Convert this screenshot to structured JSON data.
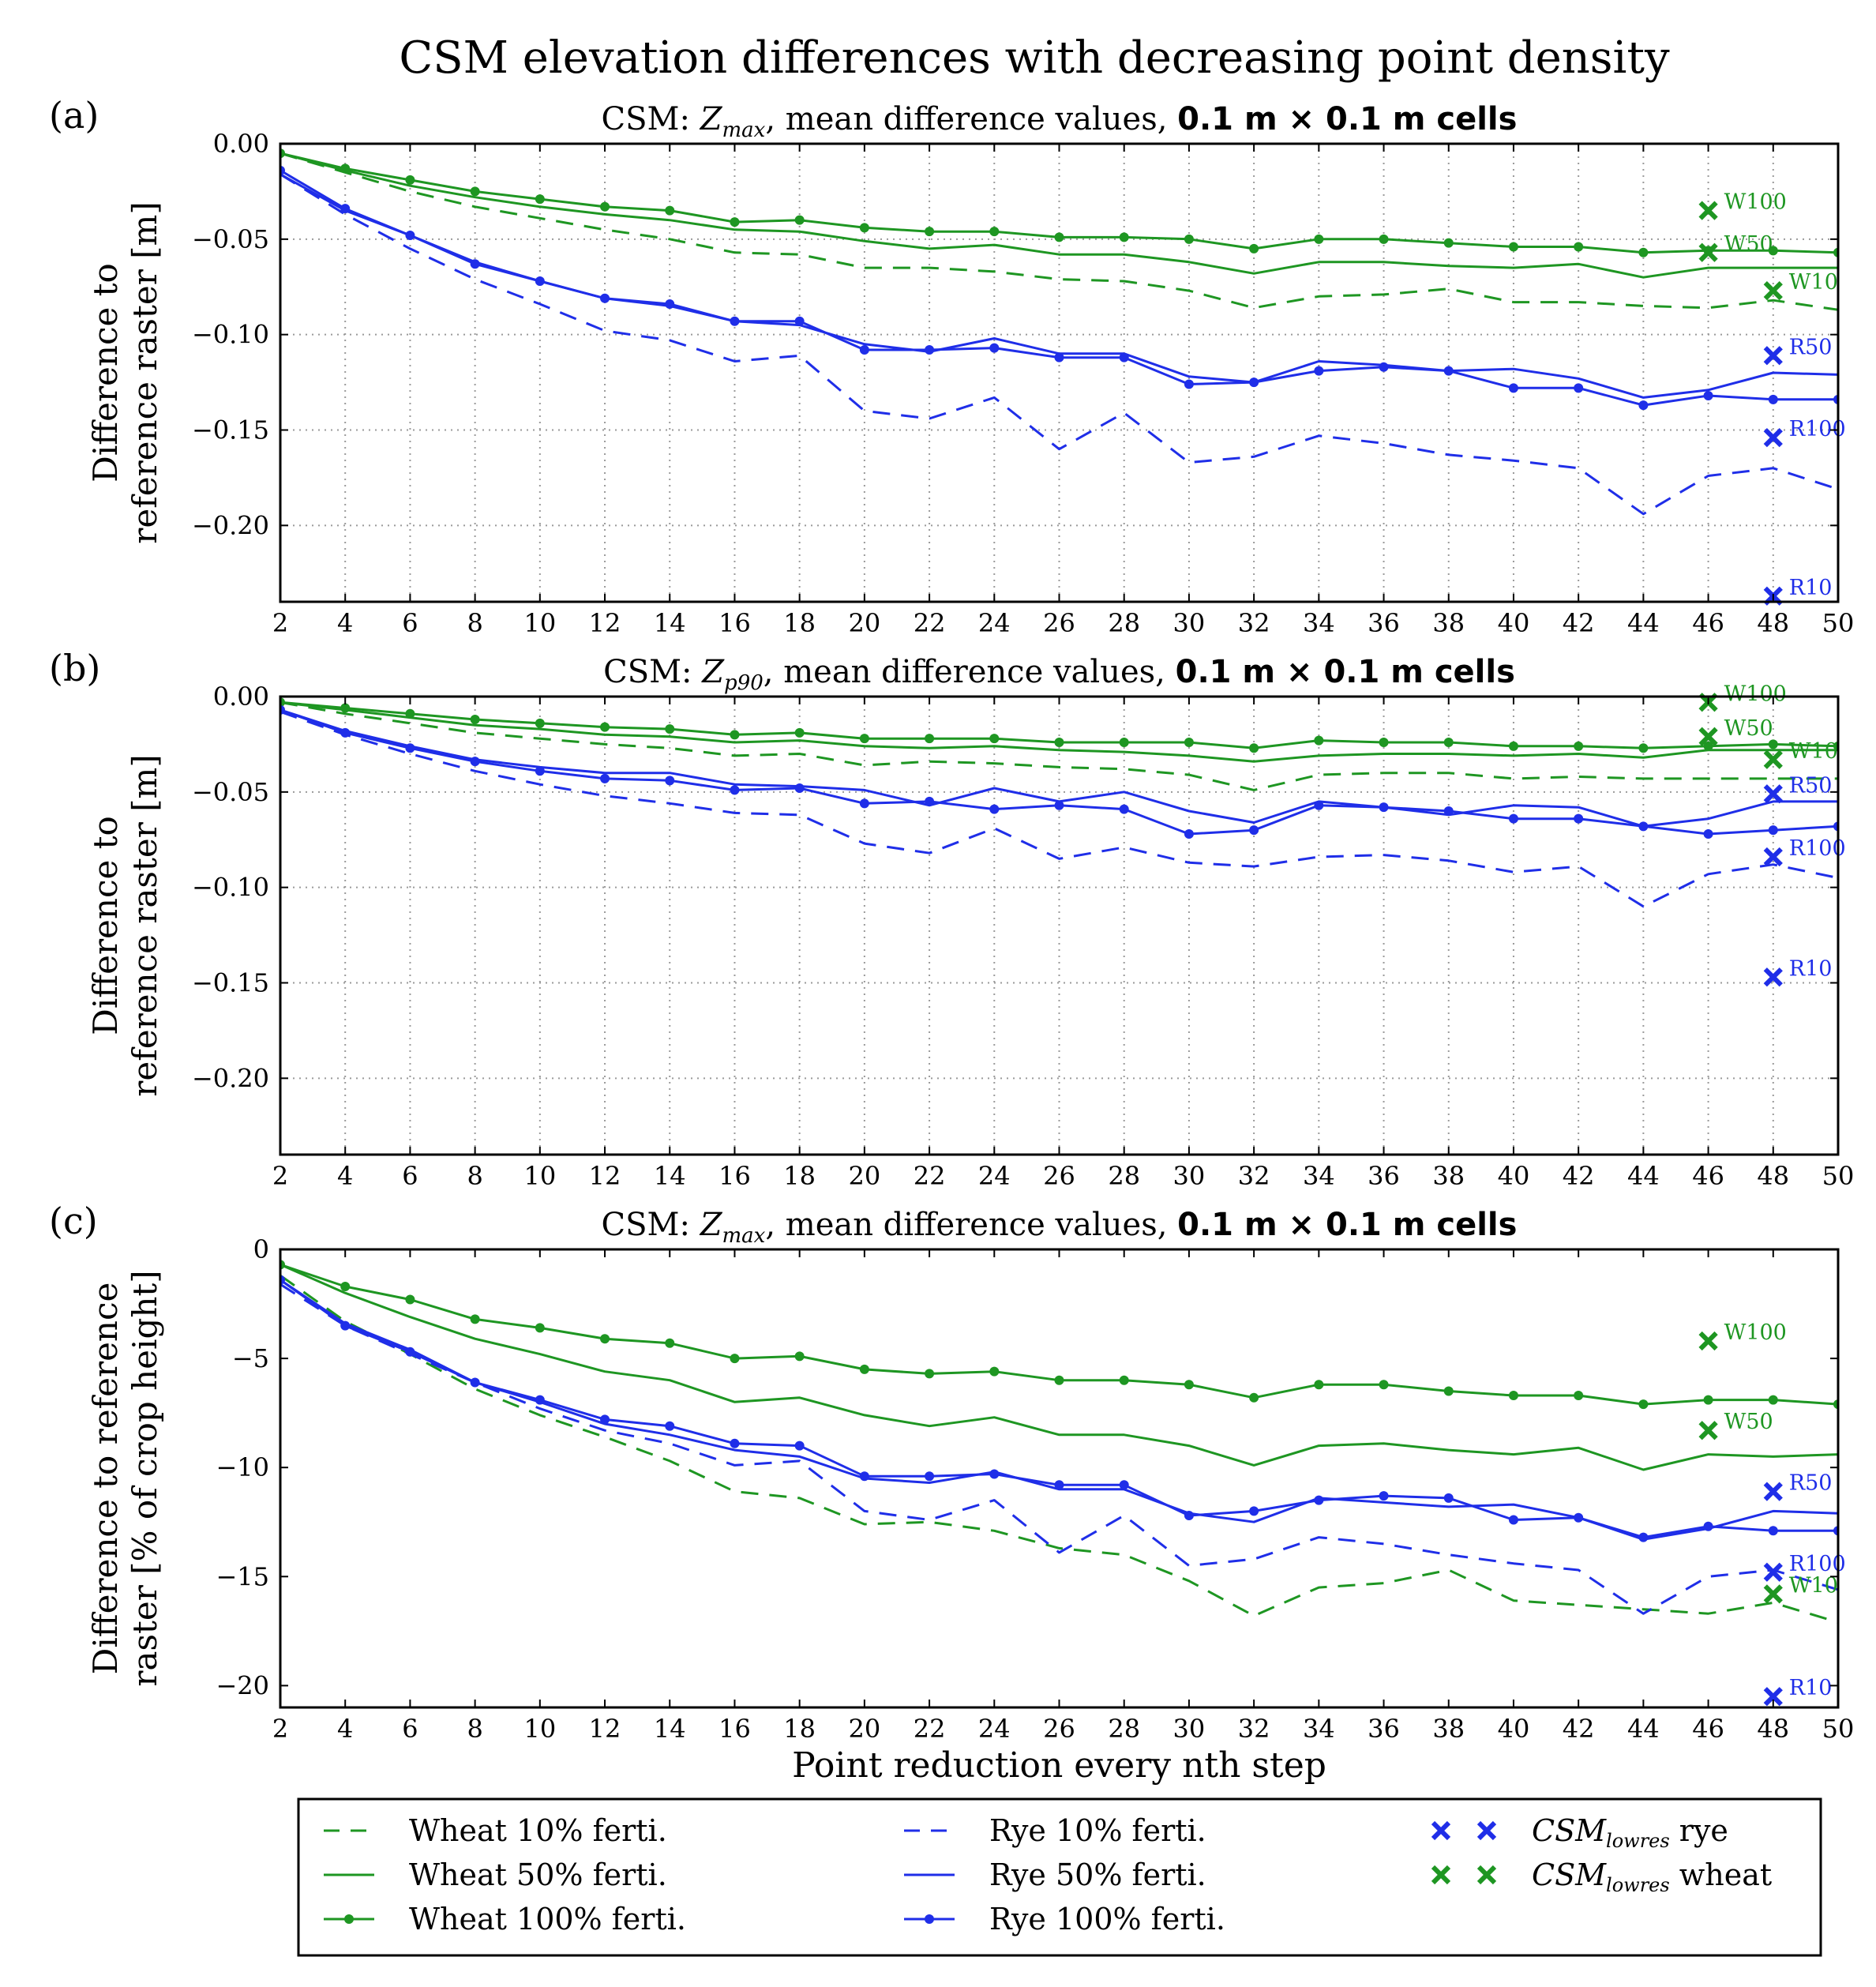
{
  "figure": {
    "title": "CSM elevation differences with decreasing point density"
  },
  "legend_entries": [
    {
      "key": "wheat10",
      "label": "Wheat 10% ferti.",
      "style": "dashed",
      "color": "#1e9622"
    },
    {
      "key": "wheat50",
      "label": "Wheat 50% ferti.",
      "style": "solid",
      "color": "#1e9622"
    },
    {
      "key": "wheat100",
      "label": "Wheat 100% ferti.",
      "style": "solid-dot",
      "color": "#1e9622"
    },
    {
      "key": "rye10",
      "label": "Rye 10% ferti.",
      "style": "dashed",
      "color": "#1f2ee8"
    },
    {
      "key": "rye50",
      "label": "Rye 50% ferti.",
      "style": "solid",
      "color": "#1f2ee8"
    },
    {
      "key": "rye100",
      "label": "Rye 100% ferti.",
      "style": "solid-dot",
      "color": "#1f2ee8"
    },
    {
      "key": "lowres_rye",
      "label_main": "CSM",
      "label_sub": "lowres",
      "label_suffix": " rye",
      "style": "x-marker",
      "color": "#1f2ee8"
    },
    {
      "key": "lowres_wheat",
      "label_main": "CSM",
      "label_sub": "lowres",
      "label_suffix": " wheat",
      "style": "x-marker",
      "color": "#1e9622"
    }
  ],
  "colors": {
    "wheat": "#1e9622",
    "rye": "#1f2ee8"
  },
  "chart_data": [
    {
      "id": "a",
      "type": "line",
      "panel_label": "(a)",
      "title": {
        "prefix": "CSM: ",
        "var_main": "Z",
        "var_sub": "max",
        "middle": ", mean difference values, ",
        "suffix": "0.1 m × 0.1 m cells"
      },
      "ylabel_lines": [
        "Difference to",
        "reference raster [m]"
      ],
      "xlabel": "",
      "xlim": [
        2,
        50
      ],
      "ylim": [
        -0.24,
        0.0
      ],
      "xticks": [
        2,
        4,
        6,
        8,
        10,
        12,
        14,
        16,
        18,
        20,
        22,
        24,
        26,
        28,
        30,
        32,
        34,
        36,
        38,
        40,
        42,
        44,
        46,
        48,
        50
      ],
      "xtick_labels": [
        "2",
        "4",
        "6",
        "8",
        "10",
        "12",
        "14",
        "16",
        "18",
        "20",
        "22",
        "24",
        "26",
        "28",
        "30",
        "32",
        "34",
        "36",
        "38",
        "40",
        "42",
        "44",
        "46",
        "48",
        "50"
      ],
      "yticks": [
        0.0,
        -0.05,
        -0.1,
        -0.15,
        -0.2
      ],
      "ytick_labels": [
        "0.00",
        "−0.05",
        "−0.10",
        "−0.15",
        "−0.20"
      ],
      "grid": true,
      "x": [
        2,
        4,
        6,
        8,
        10,
        12,
        14,
        16,
        18,
        20,
        22,
        24,
        26,
        28,
        30,
        32,
        34,
        36,
        38,
        40,
        42,
        44,
        46,
        48,
        50
      ],
      "series": [
        {
          "key": "wheat10",
          "values": [
            -0.005,
            -0.015,
            -0.025,
            -0.033,
            -0.039,
            -0.045,
            -0.05,
            -0.057,
            -0.058,
            -0.065,
            -0.065,
            -0.067,
            -0.071,
            -0.072,
            -0.077,
            -0.086,
            -0.08,
            -0.079,
            -0.076,
            -0.083,
            -0.083,
            -0.085,
            -0.086,
            -0.082,
            -0.087
          ]
        },
        {
          "key": "wheat50",
          "values": [
            -0.005,
            -0.014,
            -0.022,
            -0.028,
            -0.033,
            -0.037,
            -0.04,
            -0.045,
            -0.046,
            -0.051,
            -0.055,
            -0.053,
            -0.058,
            -0.058,
            -0.062,
            -0.068,
            -0.062,
            -0.062,
            -0.064,
            -0.065,
            -0.063,
            -0.07,
            -0.065,
            -0.065,
            -0.065
          ]
        },
        {
          "key": "wheat100",
          "values": [
            -0.005,
            -0.013,
            -0.019,
            -0.025,
            -0.029,
            -0.033,
            -0.035,
            -0.041,
            -0.04,
            -0.044,
            -0.046,
            -0.046,
            -0.049,
            -0.049,
            -0.05,
            -0.055,
            -0.05,
            -0.05,
            -0.052,
            -0.054,
            -0.054,
            -0.057,
            -0.056,
            -0.056,
            -0.057
          ]
        },
        {
          "key": "rye10",
          "values": [
            -0.016,
            -0.037,
            -0.055,
            -0.071,
            -0.084,
            -0.098,
            -0.103,
            -0.114,
            -0.111,
            -0.14,
            -0.144,
            -0.133,
            -0.16,
            -0.141,
            -0.167,
            -0.164,
            -0.153,
            -0.157,
            -0.163,
            -0.166,
            -0.17,
            -0.194,
            -0.174,
            -0.17,
            -0.181
          ]
        },
        {
          "key": "rye50",
          "values": [
            -0.016,
            -0.035,
            -0.048,
            -0.062,
            -0.072,
            -0.081,
            -0.085,
            -0.093,
            -0.095,
            -0.105,
            -0.109,
            -0.102,
            -0.11,
            -0.11,
            -0.122,
            -0.125,
            -0.114,
            -0.116,
            -0.119,
            -0.118,
            -0.123,
            -0.133,
            -0.129,
            -0.12,
            -0.121
          ]
        },
        {
          "key": "rye100",
          "values": [
            -0.014,
            -0.034,
            -0.048,
            -0.063,
            -0.072,
            -0.081,
            -0.084,
            -0.093,
            -0.093,
            -0.108,
            -0.108,
            -0.107,
            -0.112,
            -0.112,
            -0.126,
            -0.125,
            -0.119,
            -0.117,
            -0.119,
            -0.128,
            -0.128,
            -0.137,
            -0.132,
            -0.134,
            -0.134
          ]
        }
      ],
      "markers": [
        {
          "crop": "wheat",
          "x": 46,
          "y": -0.035,
          "label": "W100"
        },
        {
          "crop": "wheat",
          "x": 46,
          "y": -0.057,
          "label": "W50"
        },
        {
          "crop": "wheat",
          "x": 48,
          "y": -0.077,
          "label": "W10"
        },
        {
          "crop": "rye",
          "x": 48,
          "y": -0.111,
          "label": "R50"
        },
        {
          "crop": "rye",
          "x": 48,
          "y": -0.154,
          "label": "R100"
        },
        {
          "crop": "rye",
          "x": 48,
          "y": -0.237,
          "label": "R10"
        }
      ]
    },
    {
      "id": "b",
      "type": "line",
      "panel_label": "(b)",
      "title": {
        "prefix": "CSM: ",
        "var_main": "Z",
        "var_sub": "p90",
        "middle": ", mean difference values, ",
        "suffix": "0.1 m × 0.1 m cells"
      },
      "ylabel_lines": [
        "Difference to",
        "reference raster [m]"
      ],
      "xlabel": "",
      "xlim": [
        2,
        50
      ],
      "ylim": [
        -0.24,
        0.0
      ],
      "xticks": [
        2,
        4,
        6,
        8,
        10,
        12,
        14,
        16,
        18,
        20,
        22,
        24,
        26,
        28,
        30,
        32,
        34,
        36,
        38,
        40,
        42,
        44,
        46,
        48,
        50
      ],
      "xtick_labels": [
        "2",
        "4",
        "6",
        "8",
        "10",
        "12",
        "14",
        "16",
        "18",
        "20",
        "22",
        "24",
        "26",
        "28",
        "30",
        "32",
        "34",
        "36",
        "38",
        "40",
        "42",
        "44",
        "46",
        "48",
        "50"
      ],
      "yticks": [
        0.0,
        -0.05,
        -0.1,
        -0.15,
        -0.2
      ],
      "ytick_labels": [
        "0.00",
        "−0.05",
        "−0.10",
        "−0.15",
        "−0.20"
      ],
      "grid": true,
      "x": [
        2,
        4,
        6,
        8,
        10,
        12,
        14,
        16,
        18,
        20,
        22,
        24,
        26,
        28,
        30,
        32,
        34,
        36,
        38,
        40,
        42,
        44,
        46,
        48,
        50
      ],
      "series": [
        {
          "key": "wheat10",
          "values": [
            -0.003,
            -0.009,
            -0.014,
            -0.019,
            -0.022,
            -0.025,
            -0.027,
            -0.031,
            -0.03,
            -0.036,
            -0.034,
            -0.035,
            -0.037,
            -0.038,
            -0.041,
            -0.049,
            -0.041,
            -0.04,
            -0.04,
            -0.043,
            -0.042,
            -0.043,
            -0.043,
            -0.043,
            -0.043
          ]
        },
        {
          "key": "wheat50",
          "values": [
            -0.003,
            -0.007,
            -0.011,
            -0.015,
            -0.017,
            -0.02,
            -0.021,
            -0.024,
            -0.023,
            -0.026,
            -0.027,
            -0.026,
            -0.028,
            -0.029,
            -0.031,
            -0.034,
            -0.031,
            -0.03,
            -0.03,
            -0.031,
            -0.03,
            -0.032,
            -0.028,
            -0.028,
            -0.028
          ]
        },
        {
          "key": "wheat100",
          "values": [
            -0.003,
            -0.006,
            -0.009,
            -0.012,
            -0.014,
            -0.016,
            -0.017,
            -0.02,
            -0.019,
            -0.022,
            -0.022,
            -0.022,
            -0.024,
            -0.024,
            -0.024,
            -0.027,
            -0.023,
            -0.024,
            -0.024,
            -0.026,
            -0.026,
            -0.027,
            -0.026,
            -0.025,
            -0.026
          ]
        },
        {
          "key": "rye10",
          "values": [
            -0.008,
            -0.02,
            -0.03,
            -0.039,
            -0.046,
            -0.052,
            -0.056,
            -0.061,
            -0.062,
            -0.077,
            -0.082,
            -0.069,
            -0.085,
            -0.079,
            -0.087,
            -0.089,
            -0.084,
            -0.083,
            -0.086,
            -0.092,
            -0.089,
            -0.11,
            -0.093,
            -0.088,
            -0.095
          ]
        },
        {
          "key": "rye50",
          "values": [
            -0.007,
            -0.018,
            -0.026,
            -0.033,
            -0.037,
            -0.04,
            -0.04,
            -0.046,
            -0.047,
            -0.049,
            -0.057,
            -0.048,
            -0.055,
            -0.05,
            -0.06,
            -0.066,
            -0.055,
            -0.058,
            -0.062,
            -0.057,
            -0.058,
            -0.068,
            -0.064,
            -0.055,
            -0.055
          ]
        },
        {
          "key": "rye100",
          "values": [
            -0.007,
            -0.019,
            -0.027,
            -0.034,
            -0.039,
            -0.043,
            -0.044,
            -0.049,
            -0.048,
            -0.056,
            -0.055,
            -0.059,
            -0.057,
            -0.059,
            -0.072,
            -0.07,
            -0.057,
            -0.058,
            -0.06,
            -0.064,
            -0.064,
            -0.068,
            -0.072,
            -0.07,
            -0.068
          ]
        }
      ],
      "markers": [
        {
          "crop": "wheat",
          "x": 46,
          "y": -0.003,
          "label": "W100"
        },
        {
          "crop": "wheat",
          "x": 46,
          "y": -0.021,
          "label": "W50"
        },
        {
          "crop": "wheat",
          "x": 48,
          "y": -0.033,
          "label": "W10"
        },
        {
          "crop": "rye",
          "x": 48,
          "y": -0.051,
          "label": "R50"
        },
        {
          "crop": "rye",
          "x": 48,
          "y": -0.084,
          "label": "R100"
        },
        {
          "crop": "rye",
          "x": 48,
          "y": -0.147,
          "label": "R10"
        }
      ]
    },
    {
      "id": "c",
      "type": "line",
      "panel_label": "(c)",
      "title": {
        "prefix": "CSM: ",
        "var_main": "Z",
        "var_sub": "max",
        "middle": ", mean difference values, ",
        "suffix": "0.1 m × 0.1 m cells"
      },
      "ylabel_lines": [
        "Difference to reference",
        "raster [% of crop height]"
      ],
      "xlabel": "Point reduction every nth step",
      "xlim": [
        2,
        50
      ],
      "ylim": [
        -21,
        0
      ],
      "xticks": [
        2,
        4,
        6,
        8,
        10,
        12,
        14,
        16,
        18,
        20,
        22,
        24,
        26,
        28,
        30,
        32,
        34,
        36,
        38,
        40,
        42,
        44,
        46,
        48,
        50
      ],
      "xtick_labels": [
        "2",
        "4",
        "6",
        "8",
        "10",
        "12",
        "14",
        "16",
        "18",
        "20",
        "22",
        "24",
        "26",
        "28",
        "30",
        "32",
        "34",
        "36",
        "38",
        "40",
        "42",
        "44",
        "46",
        "48",
        "50"
      ],
      "yticks": [
        0,
        -5,
        -10,
        -15,
        -20
      ],
      "ytick_labels": [
        "0",
        "−5",
        "−10",
        "−15",
        "−20"
      ],
      "grid": false,
      "x": [
        2,
        4,
        6,
        8,
        10,
        12,
        14,
        16,
        18,
        20,
        22,
        24,
        26,
        28,
        30,
        32,
        34,
        36,
        38,
        40,
        42,
        44,
        46,
        48,
        50
      ],
      "series": [
        {
          "key": "wheat10",
          "values": [
            -1.2,
            -3.3,
            -4.8,
            -6.4,
            -7.6,
            -8.6,
            -9.7,
            -11.1,
            -11.4,
            -12.6,
            -12.5,
            -12.9,
            -13.7,
            -14.0,
            -15.2,
            -16.8,
            -15.5,
            -15.3,
            -14.7,
            -16.1,
            -16.3,
            -16.5,
            -16.7,
            -16.2,
            -17.1
          ]
        },
        {
          "key": "wheat50",
          "values": [
            -0.7,
            -2.0,
            -3.1,
            -4.1,
            -4.8,
            -5.6,
            -6.0,
            -7.0,
            -6.8,
            -7.6,
            -8.1,
            -7.7,
            -8.5,
            -8.5,
            -9.0,
            -9.9,
            -9.0,
            -8.9,
            -9.2,
            -9.4,
            -9.1,
            -10.1,
            -9.4,
            -9.5,
            -9.4
          ]
        },
        {
          "key": "wheat100",
          "values": [
            -0.7,
            -1.7,
            -2.3,
            -3.2,
            -3.6,
            -4.1,
            -4.3,
            -5.0,
            -4.9,
            -5.5,
            -5.7,
            -5.6,
            -6.0,
            -6.0,
            -6.2,
            -6.8,
            -6.2,
            -6.2,
            -6.5,
            -6.7,
            -6.7,
            -7.1,
            -6.9,
            -6.9,
            -7.1
          ]
        },
        {
          "key": "rye10",
          "values": [
            -1.6,
            -3.5,
            -4.8,
            -6.1,
            -7.3,
            -8.3,
            -8.9,
            -9.9,
            -9.7,
            -12.0,
            -12.4,
            -11.5,
            -13.9,
            -12.2,
            -14.5,
            -14.2,
            -13.2,
            -13.5,
            -14.0,
            -14.4,
            -14.7,
            -16.7,
            -15.0,
            -14.7,
            -15.6
          ]
        },
        {
          "key": "rye50",
          "values": [
            -1.4,
            -3.4,
            -4.6,
            -6.1,
            -7.0,
            -8.0,
            -8.5,
            -9.2,
            -9.5,
            -10.5,
            -10.7,
            -10.2,
            -11.0,
            -11.0,
            -12.1,
            -12.5,
            -11.4,
            -11.6,
            -11.8,
            -11.7,
            -12.3,
            -13.3,
            -12.8,
            -12.0,
            -12.1
          ]
        },
        {
          "key": "rye100",
          "values": [
            -1.4,
            -3.5,
            -4.7,
            -6.1,
            -6.9,
            -7.8,
            -8.1,
            -8.9,
            -9.0,
            -10.4,
            -10.4,
            -10.3,
            -10.8,
            -10.8,
            -12.2,
            -12.0,
            -11.5,
            -11.3,
            -11.4,
            -12.4,
            -12.3,
            -13.2,
            -12.7,
            -12.9,
            -12.9
          ]
        }
      ],
      "markers": [
        {
          "crop": "wheat",
          "x": 46,
          "y": -4.2,
          "label": "W100"
        },
        {
          "crop": "wheat",
          "x": 46,
          "y": -8.3,
          "label": "W50"
        },
        {
          "crop": "wheat",
          "x": 48,
          "y": -15.8,
          "label": "W10"
        },
        {
          "crop": "rye",
          "x": 48,
          "y": -11.1,
          "label": "R50"
        },
        {
          "crop": "rye",
          "x": 48,
          "y": -14.8,
          "label": "R100"
        },
        {
          "crop": "rye",
          "x": 48,
          "y": -20.5,
          "label": "R10"
        }
      ]
    }
  ]
}
